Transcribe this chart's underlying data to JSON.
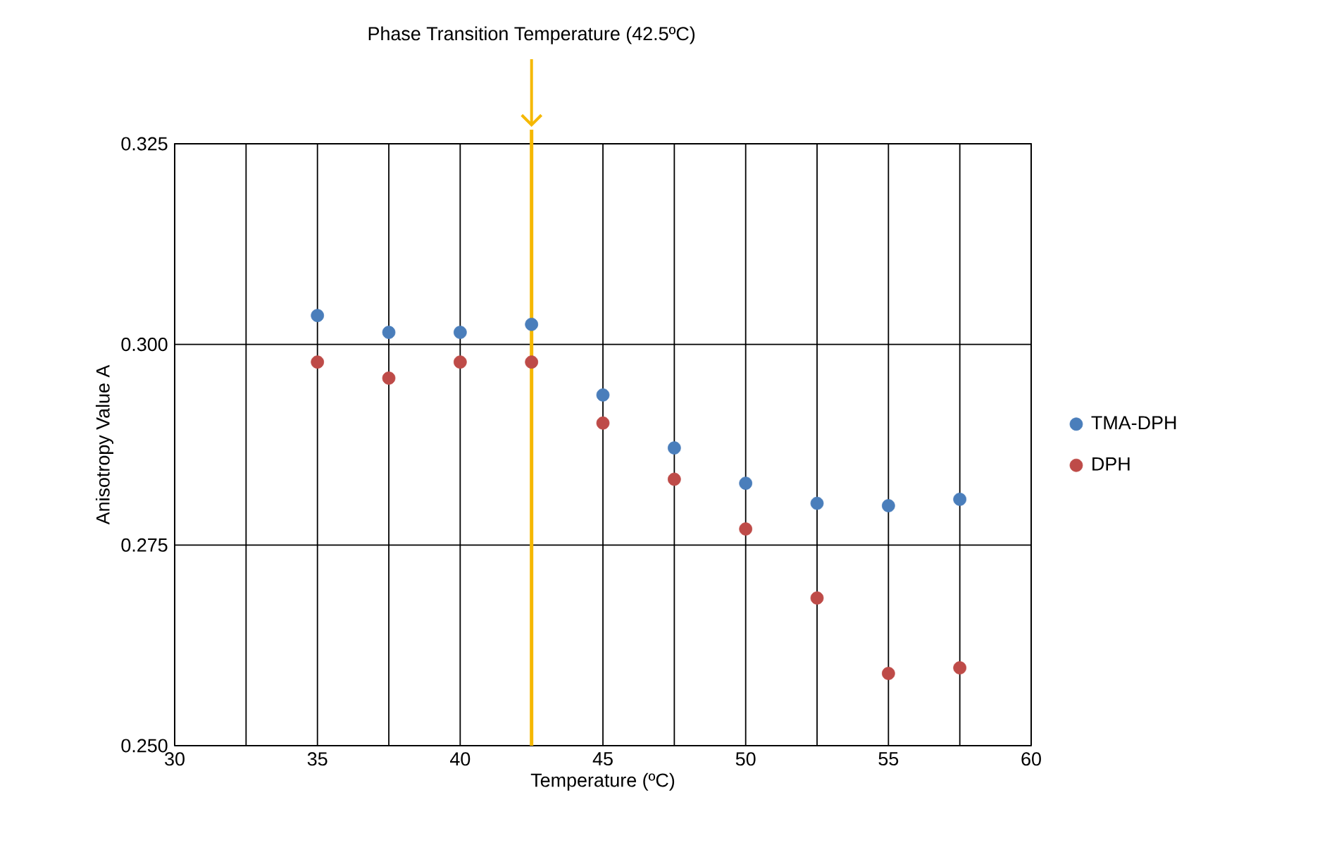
{
  "chart_data": {
    "type": "scatter",
    "xlabel": "Temperature (ºC)",
    "ylabel": "Anisotropy Value A",
    "x": [
      35,
      37.5,
      40,
      42.5,
      45,
      47.5,
      50,
      52.5,
      55,
      57.5
    ],
    "series": [
      {
        "name": "TMA-DPH",
        "color": "#4a7ebb",
        "values": [
          0.3036,
          0.3015,
          0.3015,
          0.3025,
          0.2937,
          0.2871,
          0.2827,
          0.2802,
          0.2799,
          0.2807
        ]
      },
      {
        "name": "DPH",
        "color": "#be4b48",
        "values": [
          0.2978,
          0.2958,
          0.2978,
          0.2978,
          0.2902,
          0.2832,
          0.277,
          0.2684,
          0.259,
          0.2597
        ]
      }
    ],
    "xlim": [
      30,
      60
    ],
    "xticks": [
      30,
      {
        "value": 32.5,
        "label": null
      },
      35,
      {
        "value": 37.5,
        "label": null
      },
      40,
      {
        "value": 42.5,
        "label": null
      },
      45,
      {
        "value": 47.5,
        "label": null
      },
      50,
      {
        "value": 52.5,
        "label": null
      },
      55,
      {
        "value": 57.5,
        "label": null
      },
      60
    ],
    "ylim": [
      0.25,
      0.325
    ],
    "yticks": [
      {
        "value": 0.25,
        "label": "0.250"
      },
      {
        "value": 0.275,
        "label": "0.275"
      },
      {
        "value": 0.3,
        "label": "0.300"
      },
      {
        "value": 0.325,
        "label": "0.325"
      }
    ],
    "ref_lines": [
      {
        "axis": "x",
        "value": 42.5,
        "label": "Phase Transition Temperature (42.5ºC)",
        "color": "#f5b800"
      }
    ],
    "grid": true,
    "legend": "right"
  }
}
